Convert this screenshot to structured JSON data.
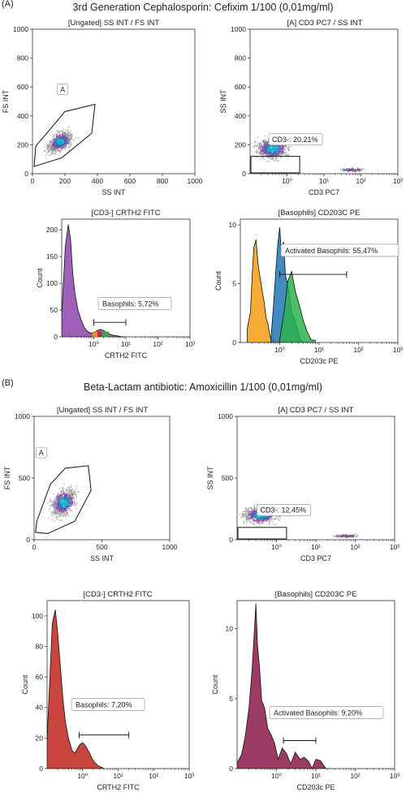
{
  "figure": {
    "section_a_label": "(A)",
    "section_a_title": "3rd Generation Cephalosporin: Cefixim 1/100 (0,01mg/ml)",
    "section_b_label": "(B)",
    "section_b_title": "Beta-Lactam antibiotic: Amoxicillin 1/100 (0,01mg/ml)"
  },
  "colors": {
    "density_low": "#8a8a8a",
    "purple": "#8e44ad",
    "blue": "#1f77b4",
    "cyan": "#19b2c8",
    "green": "#2db34a",
    "orange": "#f39c12",
    "red": "#c0241b",
    "maroon": "#8b1a4a"
  },
  "chart_data": [
    {
      "id": "A1",
      "type": "scatter",
      "title": "[Ungated] SS INT / FS INT",
      "xlabel": "SS INT",
      "ylabel": "FS INT",
      "xlim": [
        0,
        1000
      ],
      "ylim": [
        0,
        1000
      ],
      "xticks": [
        "0",
        "200",
        "400",
        "600",
        "800",
        "1000"
      ],
      "yticks": [
        "0",
        "200",
        "400",
        "600",
        "800",
        "1000"
      ],
      "gate": {
        "name": "A",
        "polygon": [
          [
            10,
            50
          ],
          [
            20,
            190
          ],
          [
            200,
            430
          ],
          [
            385,
            480
          ],
          [
            365,
            280
          ],
          [
            180,
            110
          ]
        ]
      },
      "population": {
        "center": [
          170,
          220
        ],
        "spread": [
          110,
          90
        ]
      }
    },
    {
      "id": "A2",
      "type": "scatter",
      "title": "[A] CD3 PC7 / SS INT",
      "xlabel": "CD3 PC7",
      "ylabel": "SS INT",
      "xscale": "log",
      "xlim": [
        0.1,
        1000
      ],
      "ylim": [
        0,
        1000
      ],
      "xticks": [
        "10⁰",
        "10¹",
        "10²",
        "10³"
      ],
      "yticks": [
        "0",
        "200",
        "400",
        "600",
        "800",
        "1000"
      ],
      "gate": {
        "name": "CD3-",
        "value": "20,21%",
        "label": "CD3-: 20,21%",
        "x_range": [
          0.1,
          2.2
        ],
        "y_range": [
          0,
          120
        ]
      },
      "populations": [
        {
          "center": [
            0.4,
            170
          ]
        },
        {
          "center": [
            60,
            25
          ]
        }
      ]
    },
    {
      "id": "A3",
      "type": "area",
      "title": "[CD3-] CRTH2 FITC",
      "xlabel": "CRTH2 FITC",
      "ylabel": "Count",
      "xscale": "log",
      "xlim": [
        0.1,
        1000
      ],
      "ylim": [
        0,
        220
      ],
      "xticks": [
        "10⁰",
        "10¹",
        "10²",
        "10³"
      ],
      "yticks": [
        "0",
        "50",
        "100",
        "150",
        "200"
      ],
      "series": [
        {
          "x": [
            0.1,
            0.13,
            0.16,
            0.19,
            0.22,
            0.26,
            0.32,
            0.4,
            0.5,
            0.63,
            0.8,
            1.0,
            1.3,
            1.6,
            2.0,
            2.5,
            3.2,
            4.0,
            5.0,
            6.3,
            8.0,
            10
          ],
          "y": [
            40,
            170,
            210,
            180,
            120,
            80,
            50,
            32,
            18,
            10,
            7,
            8,
            12,
            14,
            12,
            8,
            5,
            3,
            2,
            1,
            0,
            0
          ]
        }
      ],
      "marker": {
        "label": "Basophils: 5,72%",
        "name": "Basophils",
        "value": "5,72%",
        "x_range": [
          1.0,
          10
        ]
      }
    },
    {
      "id": "A4",
      "type": "area",
      "title": "[Basophils] CD203C PE",
      "xlabel": "CD203c PE",
      "ylabel": "Count",
      "xscale": "log",
      "xlim": [
        0.1,
        1000
      ],
      "ylim": [
        0,
        10.5
      ],
      "xticks": [
        "10⁰",
        "10¹",
        "10²",
        "10³"
      ],
      "yticks": [
        "0",
        "5",
        "10"
      ],
      "series": [
        {
          "x": [
            0.15,
            0.18,
            0.2,
            0.22,
            0.25,
            0.28,
            0.32,
            0.36,
            0.4,
            0.45,
            0.5,
            0.56,
            0.63,
            0.7
          ],
          "y": [
            1,
            3,
            6,
            8,
            9.2,
            7,
            5,
            4,
            3.5,
            2,
            1.5,
            1,
            0.5,
            0
          ]
        },
        {
          "x": [
            0.6,
            0.7,
            0.8,
            0.9,
            1.0,
            1.1,
            1.25,
            1.4,
            1.6,
            1.8,
            2.0,
            2.5,
            3.2,
            4.0
          ],
          "y": [
            0.5,
            3,
            6,
            8.5,
            10,
            8,
            9,
            6,
            5,
            4,
            3,
            1.5,
            0.8,
            0
          ]
        },
        {
          "x": [
            1.0,
            1.3,
            1.6,
            2.0,
            2.5,
            3.2,
            4.0,
            5.0,
            6.3,
            8.0
          ],
          "y": [
            0.5,
            2.5,
            5,
            6,
            4,
            3,
            1.5,
            1,
            0.3,
            0
          ]
        }
      ],
      "marker": {
        "label": "Activated Basophils: 55,47%",
        "name": "Activated Basophils",
        "value": "55,47%",
        "x_range": [
          1.0,
          50
        ]
      }
    },
    {
      "id": "B1",
      "type": "scatter",
      "title": "[Ungated] SS INT / FS INT",
      "xlabel": "SS INT",
      "ylabel": "FS INT",
      "xlim": [
        0,
        1000
      ],
      "ylim": [
        0,
        1000
      ],
      "xticks": [
        "0",
        "500",
        "1000"
      ],
      "yticks": [
        "0",
        "500",
        "1000"
      ],
      "gate": {
        "name": "A",
        "polygon": [
          [
            10,
            60
          ],
          [
            20,
            150
          ],
          [
            120,
            450
          ],
          [
            230,
            580
          ],
          [
            400,
            600
          ],
          [
            420,
            400
          ],
          [
            300,
            150
          ],
          [
            100,
            50
          ]
        ]
      },
      "population": {
        "center": [
          220,
          300
        ],
        "spread": [
          130,
          150
        ]
      }
    },
    {
      "id": "B2",
      "type": "scatter",
      "title": "[A] CD3 PC7 / SS INT",
      "xlabel": "CD3 PC7",
      "ylabel": "SS INT",
      "xscale": "log",
      "xlim": [
        0.1,
        1000
      ],
      "ylim": [
        0,
        1000
      ],
      "xticks": [
        "10⁰",
        "10¹",
        "10²",
        "10³"
      ],
      "yticks": [
        "0",
        "500",
        "1000"
      ],
      "gate": {
        "name": "CD3-",
        "value": "12,45%",
        "label": "CD3-: 12,45%",
        "x_range": [
          0.1,
          1.8
        ],
        "y_range": [
          0,
          100
        ]
      },
      "populations": [
        {
          "center": [
            0.4,
            200
          ]
        },
        {
          "center": [
            60,
            30
          ]
        }
      ]
    },
    {
      "id": "B3",
      "type": "area",
      "title": "[CD3-] CRTH2 FITC",
      "xlabel": "CRTH2 FITC",
      "ylabel": "Count",
      "xscale": "log",
      "xlim": [
        0.1,
        1000
      ],
      "ylim": [
        0,
        110
      ],
      "xticks": [
        "10⁰",
        "10¹",
        "10²",
        "10³"
      ],
      "yticks": [
        "0",
        "20",
        "40",
        "60",
        "80",
        "100"
      ],
      "series": [
        {
          "x": [
            0.1,
            0.12,
            0.14,
            0.17,
            0.2,
            0.24,
            0.28,
            0.33,
            0.4,
            0.5,
            0.6,
            0.7,
            0.85,
            1.0,
            1.2,
            1.5,
            1.8,
            2.2,
            2.7,
            3.3,
            4.0
          ],
          "y": [
            20,
            60,
            95,
            104,
            88,
            65,
            45,
            30,
            20,
            12,
            10,
            13,
            16,
            17,
            15,
            11,
            7,
            4,
            2,
            1,
            0
          ]
        }
      ],
      "marker": {
        "label": "Basophils: 7,20%",
        "name": "Basophils",
        "value": "7,20%",
        "x_range": [
          0.8,
          20
        ]
      }
    },
    {
      "id": "B4",
      "type": "area",
      "title": "[Basophils] CD203C PE",
      "xlabel": "CD203c PE",
      "ylabel": "Count",
      "xscale": "log",
      "xlim": [
        0.1,
        1000
      ],
      "ylim": [
        0,
        12
      ],
      "xticks": [
        "10⁰",
        "10¹",
        "10²",
        "10³"
      ],
      "yticks": [
        "0",
        "5",
        "10"
      ],
      "series": [
        {
          "x": [
            0.1,
            0.13,
            0.16,
            0.2,
            0.24,
            0.28,
            0.3,
            0.33,
            0.37,
            0.42,
            0.5,
            0.6,
            0.75,
            0.9,
            1.1,
            1.4,
            1.8,
            2.3,
            3.0,
            4.0,
            5.0,
            6.5,
            8.0,
            10,
            13,
            18,
            25
          ],
          "y": [
            0.5,
            1,
            2,
            4,
            7,
            10,
            11.5,
            9,
            7,
            5,
            4,
            3,
            2,
            1.5,
            1,
            1.3,
            1,
            0.6,
            0.8,
            0.5,
            0.6,
            0.3,
            0.4,
            0.3,
            0.2,
            0.1,
            0
          ]
        }
      ],
      "marker": {
        "label": "Activated Basophils: 9,20%",
        "name": "Activated Basophils",
        "value": "9,20%",
        "x_range": [
          1.5,
          10
        ]
      }
    }
  ]
}
